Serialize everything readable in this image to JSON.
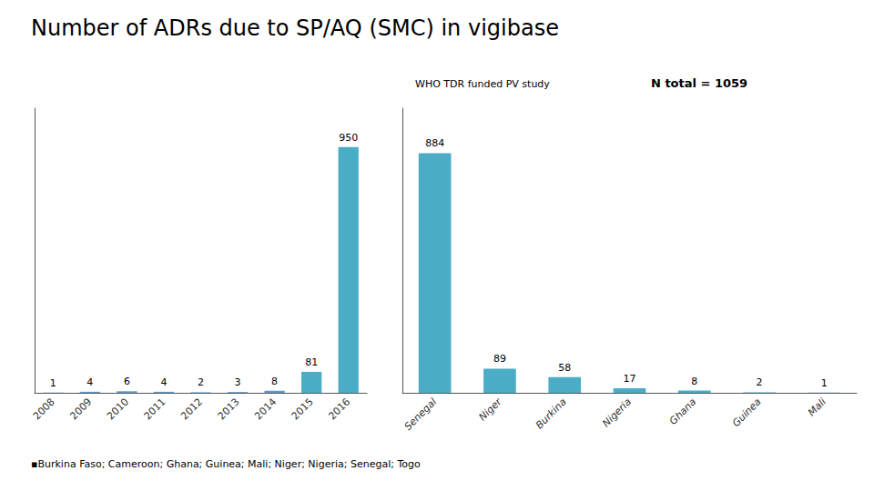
{
  "chart_data": [
    {
      "type": "bar",
      "title": "Number of ADRs due to SP/AQ (SMC) in vigibase",
      "categories": [
        "2008",
        "2009",
        "2010",
        "2011",
        "2012",
        "2013",
        "2014",
        "2015",
        "2016"
      ],
      "values": [
        1,
        4,
        6,
        4,
        2,
        3,
        8,
        81,
        950
      ],
      "colors": [
        "#5B9BD5",
        "#5B9BD5",
        "#5B9BD5",
        "#5B9BD5",
        "#5B9BD5",
        "#5B9BD5",
        "#5B9BD5",
        "#4BACC6",
        "#4BACC6"
      ],
      "ylim": [
        0,
        1100
      ],
      "tick_labels": "x",
      "data_labels": true,
      "grid": false,
      "annotations": [
        "▪Burkina Faso; Cameroon; Ghana; Guinea; Mali; Niger; Nigeria; Senegal; Togo"
      ]
    },
    {
      "type": "bar",
      "subtitle": "WHO TDR funded PV study",
      "categories": [
        "Senegal",
        "Niger",
        "Burkina",
        "Nigeria",
        "Ghana",
        "Guinea",
        "Mali"
      ],
      "values": [
        884,
        89,
        58,
        17,
        8,
        2,
        1
      ],
      "color": "#4BACC6",
      "ylim": [
        0,
        1050
      ],
      "tick_labels": "x",
      "data_labels": true,
      "grid": false,
      "annotations": [
        "N total = 1059"
      ]
    }
  ]
}
